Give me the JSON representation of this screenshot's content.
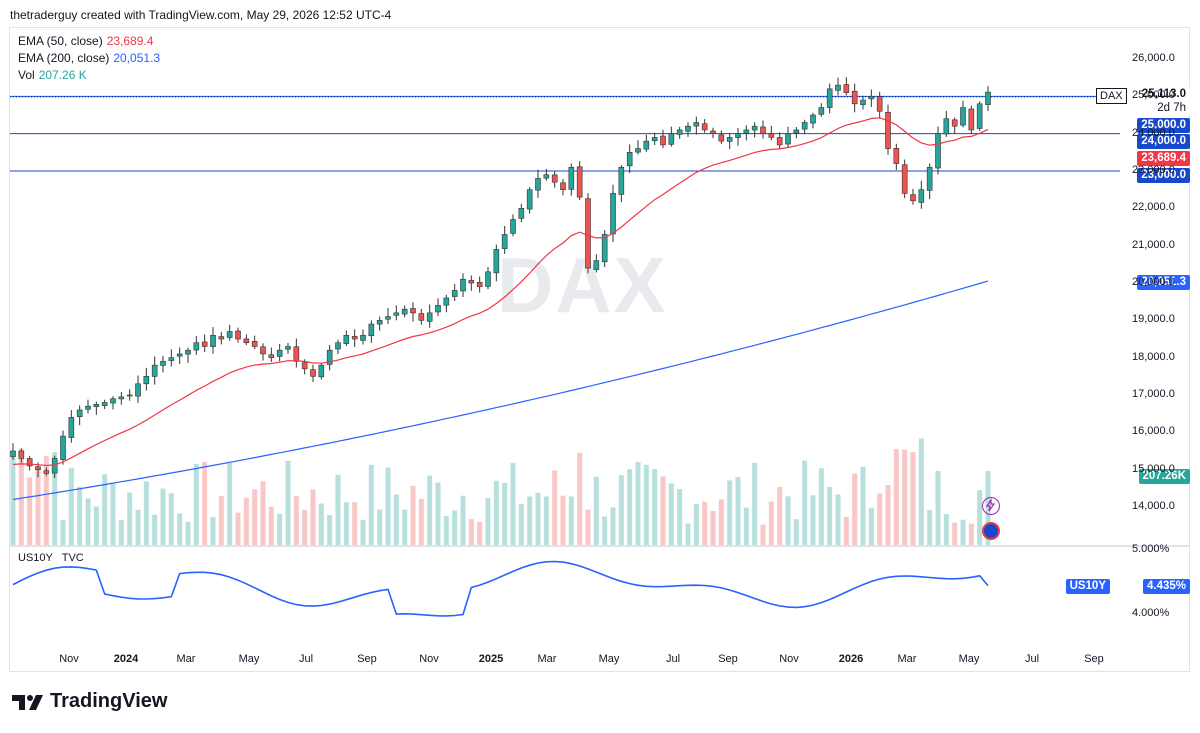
{
  "header": "thetraderguy created with TradingView.com, May 29, 2026 12:52 UTC-4",
  "watermark": "DAX",
  "legend": {
    "ema50_label": "EMA (50, close)",
    "ema50_value": "23,689.4",
    "ema200_label": "EMA (200, close)",
    "ema200_value": "20,051.3",
    "vol_label": "Vol",
    "vol_value": "207.26 K"
  },
  "symbol_tag": "DAX",
  "price_tags": {
    "last": "25,113.0",
    "countdown": "2d 7h",
    "h25000": "25,000.0",
    "h24000": "24,000.0",
    "ema50": "23,689.4",
    "h23000": "23,000.0",
    "ema200": "20,051.3",
    "vol": "207.26K"
  },
  "price_axis": [
    "26,000.0",
    "25,000.0",
    "24,000.0",
    "23,000.0",
    "22,000.0",
    "21,000.0",
    "20,000.0",
    "19,000.0",
    "18,000.0",
    "17,000.0",
    "16,000.0",
    "15,000.0",
    "14,000.0"
  ],
  "sub_pane": {
    "label": "US10Y",
    "source": "TVC",
    "axis": [
      "5.000%",
      "4.000%"
    ],
    "tag_symbol": "US10Y",
    "tag_value": "4.435%"
  },
  "x_axis": [
    "Nov",
    "2024",
    "Mar",
    "May",
    "Jul",
    "Sep",
    "Nov",
    "2025",
    "Mar",
    "May",
    "Jul",
    "Sep",
    "Nov",
    "2026",
    "Mar",
    "May",
    "Jul",
    "Sep"
  ],
  "logo_text": "TradingView",
  "colors": {
    "up": "#26a69a",
    "down": "#ef5350",
    "ema50": "#f23645",
    "ema200": "#2962ff",
    "hline": "#1848cc",
    "us10y": "#2962ff"
  },
  "chart_data": [
    {
      "type": "candlestick",
      "title": "DAX",
      "x_range": [
        "2023-10",
        "2026-09"
      ],
      "ylim": [
        13500,
        26500
      ],
      "horizontal_lines": [
        25000,
        24000,
        23000
      ],
      "last_price": 25113.0,
      "closes_weekly_approx": [
        15500,
        15300,
        15100,
        15000,
        14900,
        15300,
        15900,
        16400,
        16600,
        16700,
        16750,
        16800,
        16900,
        16950,
        17000,
        17300,
        17500,
        17800,
        17900,
        18000,
        18100,
        18200,
        18400,
        18300,
        18600,
        18500,
        18700,
        18500,
        18400,
        18300,
        18100,
        18000,
        18200,
        18300,
        17900,
        17700,
        17500,
        17800,
        18200,
        18400,
        18600,
        18500,
        18600,
        18900,
        19000,
        19100,
        19200,
        19300,
        19200,
        19000,
        19200,
        19400,
        19600,
        19800,
        20100,
        20000,
        19900,
        20300,
        20900,
        21300,
        21700,
        22000,
        22500,
        22800,
        22900,
        22700,
        22500,
        23100,
        22300,
        20400,
        20600,
        21300,
        22400,
        23100,
        23500,
        23600,
        23800,
        23900,
        23700,
        24000,
        24100,
        24200,
        24300,
        24100,
        24000,
        23800,
        23900,
        24000,
        24100,
        24200,
        24000,
        23900,
        23700,
        24000,
        24100,
        24300,
        24500,
        24700,
        25200,
        25300,
        25100,
        24800,
        24900,
        25000,
        24600,
        23600,
        23200,
        22400,
        22200,
        22500,
        23100,
        24000,
        24400,
        24200,
        24700,
        24100,
        24800,
        25113
      ],
      "series": [
        {
          "name": "EMA (50, close)",
          "last": 23689.4
        },
        {
          "name": "EMA (200, close)",
          "last": 20051.3
        }
      ]
    },
    {
      "type": "line",
      "title": "US10Y",
      "ylim": [
        3.6,
        5.2
      ],
      "last": 4.435
    }
  ]
}
